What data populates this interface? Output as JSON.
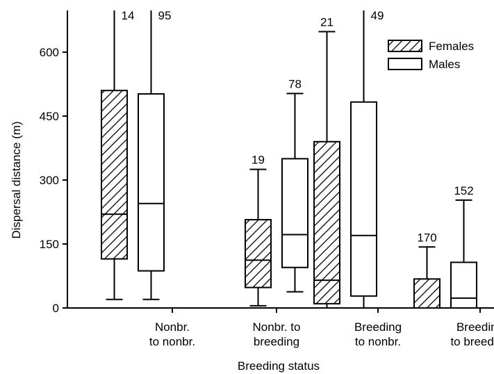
{
  "chart_data": {
    "type": "box",
    "title": "",
    "xlabel": "Breeding status",
    "ylabel": "Dispersal distance (m)",
    "ylim": [
      0,
      700
    ],
    "yticks": [
      0,
      150,
      300,
      450,
      600
    ],
    "categories": [
      [
        "Nonbr.",
        "to nonbr."
      ],
      [
        "Nonbr. to",
        "breeding"
      ],
      [
        "Breeding",
        "to nonbr."
      ],
      [
        "Breeding",
        "to breeding"
      ]
    ],
    "legend": {
      "position": "top-right"
    },
    "series": [
      {
        "name": "Females",
        "pattern": "hatched",
        "boxes": [
          {
            "min": 20,
            "q1": 115,
            "median": 220,
            "q3": 510,
            "max": 720,
            "n": "14",
            "capped": false
          },
          {
            "min": 5,
            "q1": 48,
            "median": 112,
            "q3": 207,
            "max": 325,
            "n": "19",
            "capped": true
          },
          {
            "min": 0,
            "q1": 10,
            "median": 65,
            "q3": 390,
            "max": 648,
            "n": "21",
            "capped": true
          },
          {
            "min": 0,
            "q1": 0,
            "median": 0,
            "q3": 68,
            "max": 143,
            "n": "170",
            "capped": true
          }
        ]
      },
      {
        "name": "Males",
        "pattern": "open",
        "boxes": [
          {
            "min": 20,
            "q1": 87,
            "median": 245,
            "q3": 502,
            "max": 720,
            "n": "95",
            "capped": false
          },
          {
            "min": 38,
            "q1": 95,
            "median": 172,
            "q3": 350,
            "max": 503,
            "n": "78",
            "capped": true
          },
          {
            "min": 0,
            "q1": 28,
            "median": 170,
            "q3": 483,
            "max": 720,
            "n": "49",
            "capped": false
          },
          {
            "min": 0,
            "q1": 0,
            "median": 23,
            "q3": 107,
            "max": 253,
            "n": "152",
            "capped": true
          }
        ]
      }
    ]
  }
}
